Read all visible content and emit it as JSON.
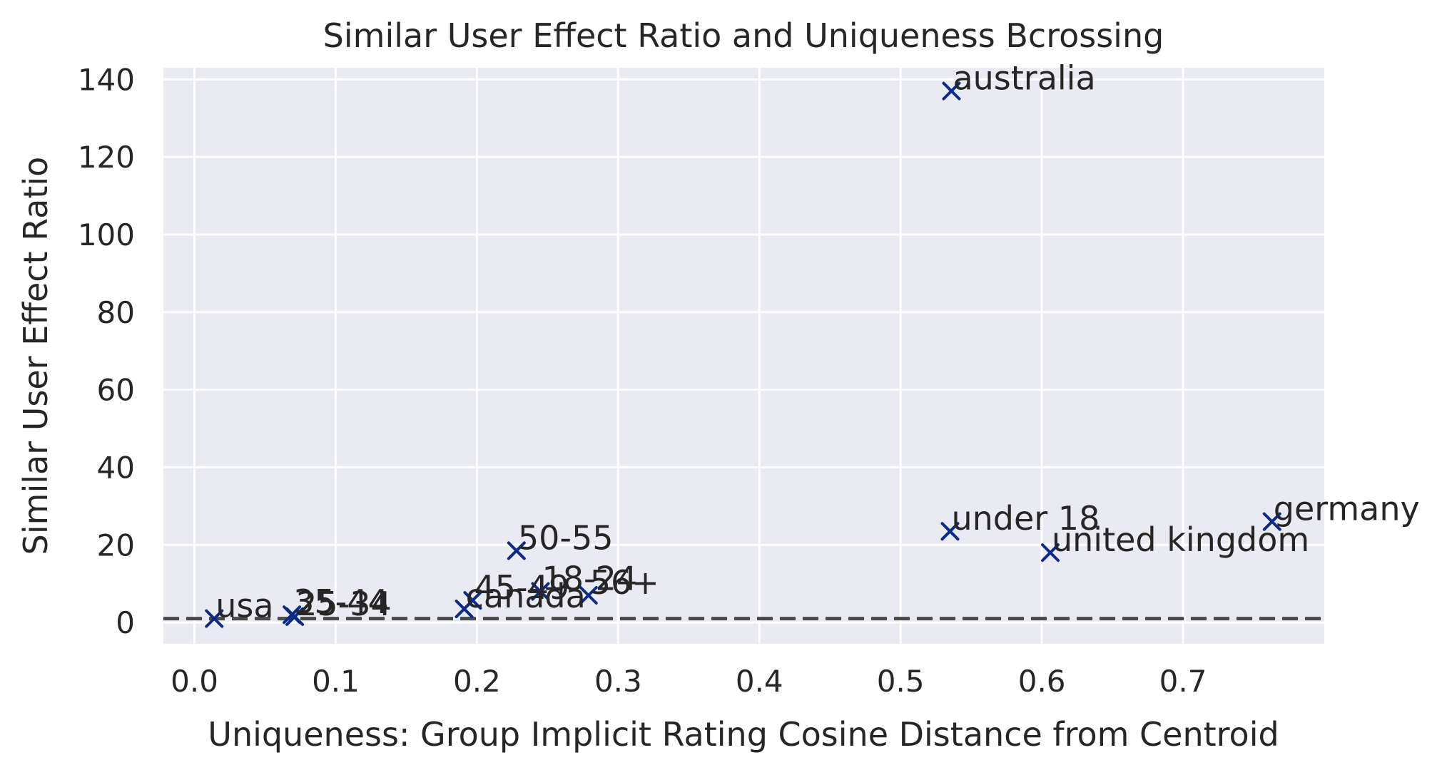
{
  "chart_data": {
    "type": "scatter",
    "title": "Similar User Effect Ratio and Uniqueness Bcrossing",
    "xlabel": "Uniqueness: Group Implicit Rating Cosine Distance from Centroid",
    "ylabel": "Similar User Effect Ratio",
    "xlim": [
      -0.022,
      0.8
    ],
    "ylim": [
      -5.5,
      143
    ],
    "xticks": [
      0.0,
      0.1,
      0.2,
      0.3,
      0.4,
      0.5,
      0.6,
      0.7
    ],
    "xtick_labels": [
      "0.0",
      "0.1",
      "0.2",
      "0.3",
      "0.4",
      "0.5",
      "0.6",
      "0.7"
    ],
    "yticks": [
      0,
      20,
      40,
      60,
      80,
      100,
      120,
      140
    ],
    "ytick_labels": [
      "0",
      "20",
      "40",
      "60",
      "80",
      "100",
      "120",
      "140"
    ],
    "grid": true,
    "reference_line": {
      "y": 1,
      "style": "dashed",
      "color": "#4a4a4a"
    },
    "marker": "x",
    "colors": {
      "plot_background": "#eaeaf2",
      "grid": "#ffffff",
      "marker": "#0b2a8a",
      "text": "#262626"
    },
    "points": [
      {
        "label": "usa",
        "x": 0.014,
        "y": 1.0
      },
      {
        "label": "35-44",
        "x": 0.069,
        "y": 2.0
      },
      {
        "label": "25-34",
        "x": 0.071,
        "y": 1.5
      },
      {
        "label": "canada",
        "x": 0.191,
        "y": 3.5
      },
      {
        "label": "45-49",
        "x": 0.197,
        "y": 5.7
      },
      {
        "label": "50-55",
        "x": 0.228,
        "y": 18.5
      },
      {
        "label": "18-24",
        "x": 0.245,
        "y": 8.0
      },
      {
        "label": "56+",
        "x": 0.279,
        "y": 7.0
      },
      {
        "label": "australia",
        "x": 0.536,
        "y": 137.0
      },
      {
        "label": "under 18",
        "x": 0.535,
        "y": 23.5
      },
      {
        "label": "united kingdom",
        "x": 0.606,
        "y": 18.0
      },
      {
        "label": "germany",
        "x": 0.763,
        "y": 26.0
      }
    ]
  }
}
